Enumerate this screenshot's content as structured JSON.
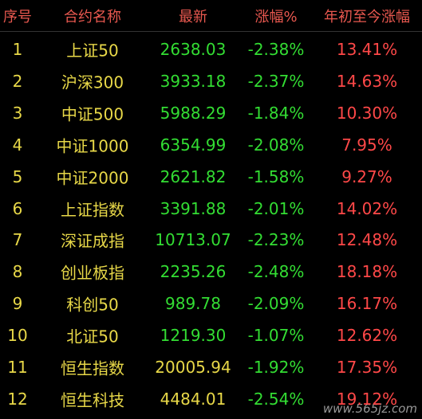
{
  "header": [
    "序号",
    "合约名称",
    "最新",
    "涨幅%",
    "年初至今涨幅"
  ],
  "rows": [
    [
      "1",
      "上证50",
      "2638.03",
      "-2.38%",
      "13.41%"
    ],
    [
      "2",
      "沪深300",
      "3933.18",
      "-2.37%",
      "14.63%"
    ],
    [
      "3",
      "中证500",
      "5988.29",
      "-1.84%",
      "10.30%"
    ],
    [
      "4",
      "中证1000",
      "6354.99",
      "-2.08%",
      "7.95%"
    ],
    [
      "5",
      "中证2000",
      "2621.82",
      "-1.58%",
      "9.27%"
    ],
    [
      "6",
      "上证指数",
      "3391.88",
      "-2.01%",
      "14.02%"
    ],
    [
      "7",
      "深证成指",
      "10713.07",
      "-2.23%",
      "12.48%"
    ],
    [
      "8",
      "创业板指",
      "2235.26",
      "-2.48%",
      "18.18%"
    ],
    [
      "9",
      "科创50",
      "989.78",
      "-2.09%",
      "16.17%"
    ],
    [
      "10",
      "北证50",
      "1219.30",
      "-1.07%",
      "12.62%"
    ],
    [
      "11",
      "恒生指数",
      "20005.94",
      "-1.92%",
      "17.35%"
    ],
    [
      "12",
      "恒生科技",
      "4484.01",
      "-2.54%",
      "19.12%"
    ]
  ],
  "watermark": "www.565jz.com"
}
